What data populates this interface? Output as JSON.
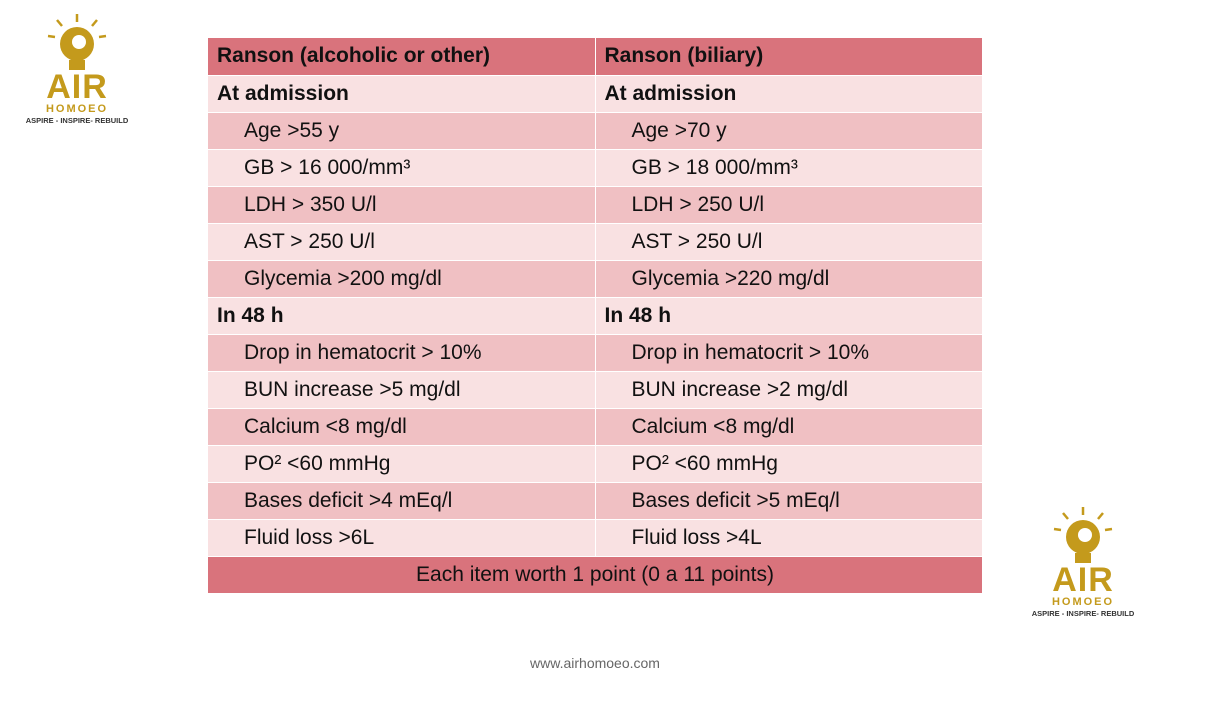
{
  "logos": [
    {
      "title": "AIR",
      "subtitle": "HOMOEO",
      "tagline": "ASPIRE - INSPIRE- REBUILD"
    },
    {
      "title": "AIR",
      "subtitle": "HOMOEO",
      "tagline": "ASPIRE - INSPIRE- REBUILD"
    }
  ],
  "table": {
    "header": [
      "Ranson (alcoholic or other)",
      "Ranson (biliary)"
    ],
    "sections": [
      {
        "heading": [
          "At admission",
          "At admission"
        ],
        "items": [
          [
            "Age >55 y",
            "Age >70 y"
          ],
          [
            "GB > 16 000/mm³",
            "GB > 18 000/mm³"
          ],
          [
            "LDH > 350 U/l",
            "LDH > 250 U/l"
          ],
          [
            "AST > 250 U/l",
            "AST > 250 U/l"
          ],
          [
            "Glycemia >200 mg/dl",
            "Glycemia >220 mg/dl"
          ]
        ]
      },
      {
        "heading": [
          "In 48 h",
          "In 48 h"
        ],
        "items": [
          [
            "Drop in hematocrit > 10%",
            "Drop in hematocrit > 10%"
          ],
          [
            "BUN increase >5 mg/dl",
            "BUN increase >2 mg/dl"
          ],
          [
            "Calcium <8 mg/dl",
            "Calcium <8 mg/dl"
          ],
          [
            "PO² <60 mmHg",
            "PO² <60 mmHg"
          ],
          [
            "Bases deficit >4 mEq/l",
            "Bases deficit >5 mEq/l"
          ],
          [
            "Fluid loss >6L",
            "Fluid loss >4L"
          ]
        ]
      }
    ],
    "footer": "Each item worth 1 point (0 a 11 points)"
  },
  "website": "www.airhomoeo.com"
}
